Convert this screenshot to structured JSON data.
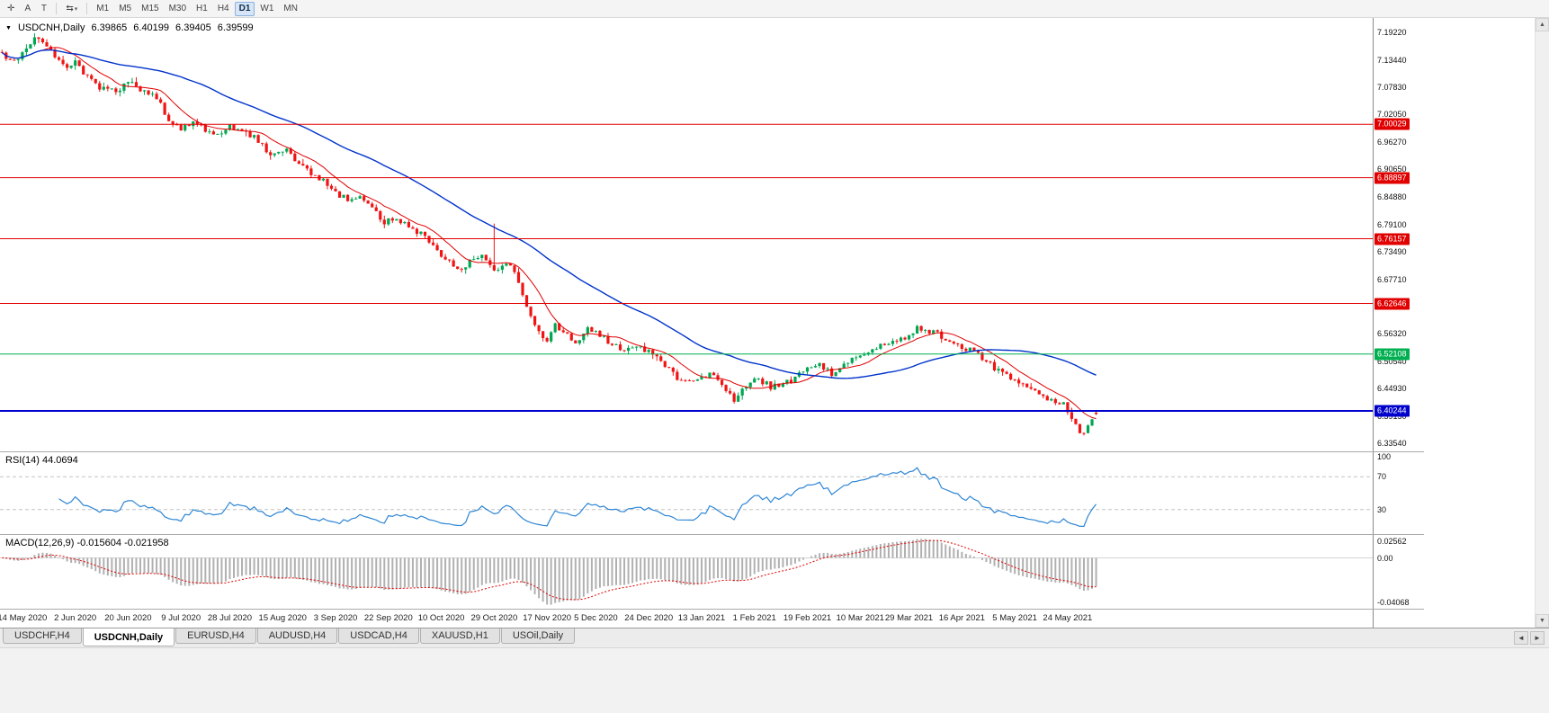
{
  "toolbar": {
    "tools": [
      {
        "name": "crosshair-tool-button",
        "glyph": "✛"
      },
      {
        "name": "text-label-tool-button",
        "glyph": "A"
      },
      {
        "name": "text-tool-button",
        "glyph": "T"
      }
    ],
    "cycle_tool": {
      "name": "cycle-lines-tool-button",
      "glyph": "⇆",
      "caret": "▾"
    },
    "timeframes": [
      {
        "label": "M1"
      },
      {
        "label": "M5"
      },
      {
        "label": "M15"
      },
      {
        "label": "M30"
      },
      {
        "label": "H1"
      },
      {
        "label": "H4"
      },
      {
        "label": "D1",
        "active": true
      },
      {
        "label": "W1"
      },
      {
        "label": "MN"
      }
    ]
  },
  "chart": {
    "expander": "▼",
    "symbol_period": "USDCNH,Daily",
    "open": "6.39865",
    "high": "6.40199",
    "low": "6.39405",
    "close": "6.39599"
  },
  "panels": {
    "rsi_label": "RSI(14) 44.0694",
    "macd_label": "MACD(12,26,9) -0.015604 -0.021958"
  },
  "scrollbar": {
    "up": "▲",
    "down": "▼"
  },
  "tab_nav": {
    "left": "◄",
    "right": "►"
  },
  "tabs": [
    {
      "label": "USDCHF,H4"
    },
    {
      "label": "USDCNH,Daily",
      "active": true
    },
    {
      "label": "EURUSD,H4"
    },
    {
      "label": "AUDUSD,H4"
    },
    {
      "label": "USDCAD,H4"
    },
    {
      "label": "XAUUSD,H1"
    },
    {
      "label": "USOil,Daily"
    }
  ],
  "chart_data": {
    "type": "candlestick",
    "symbol": "USDCNH",
    "period": "Daily",
    "ohlc_current": {
      "open": 6.39865,
      "high": 6.40199,
      "low": 6.39405,
      "close": 6.39599
    },
    "price_min": 6.318,
    "price_max": 7.222,
    "candle_count": 270,
    "candles_width_fraction": 0.8,
    "noise": 0.013,
    "up_color": "#00a651",
    "down_color": "#f01414",
    "anchors": [
      [
        0,
        7.15
      ],
      [
        3,
        7.128
      ],
      [
        6,
        7.16
      ],
      [
        9,
        7.183
      ],
      [
        12,
        7.15
      ],
      [
        15,
        7.12
      ],
      [
        18,
        7.133
      ],
      [
        21,
        7.098
      ],
      [
        24,
        7.076
      ],
      [
        28,
        7.068
      ],
      [
        31,
        7.088
      ],
      [
        34,
        7.072
      ],
      [
        38,
        7.056
      ],
      [
        41,
        7.01
      ],
      [
        44,
        6.992
      ],
      [
        47,
        7.002
      ],
      [
        50,
        6.988
      ],
      [
        53,
        6.978
      ],
      [
        56,
        6.995
      ],
      [
        59,
        6.988
      ],
      [
        62,
        6.972
      ],
      [
        66,
        6.94
      ],
      [
        70,
        6.948
      ],
      [
        73,
        6.918
      ],
      [
        76,
        6.898
      ],
      [
        79,
        6.882
      ],
      [
        82,
        6.858
      ],
      [
        85,
        6.842
      ],
      [
        88,
        6.846
      ],
      [
        91,
        6.822
      ],
      [
        94,
        6.798
      ],
      [
        97,
        6.806
      ],
      [
        100,
        6.782
      ],
      [
        103,
        6.772
      ],
      [
        106,
        6.748
      ],
      [
        109,
        6.716
      ],
      [
        112,
        6.698
      ],
      [
        115,
        6.712
      ],
      [
        118,
        6.722
      ],
      [
        121,
        6.695
      ],
      [
        124,
        6.712
      ],
      [
        126,
        6.69
      ],
      [
        128,
        6.64
      ],
      [
        130,
        6.598
      ],
      [
        132,
        6.568
      ],
      [
        134,
        6.552
      ],
      [
        136,
        6.58
      ],
      [
        138,
        6.562
      ],
      [
        141,
        6.548
      ],
      [
        144,
        6.572
      ],
      [
        147,
        6.562
      ],
      [
        150,
        6.538
      ],
      [
        153,
        6.528
      ],
      [
        156,
        6.536
      ],
      [
        159,
        6.528
      ],
      [
        162,
        6.506
      ],
      [
        165,
        6.478
      ],
      [
        168,
        6.462
      ],
      [
        171,
        6.468
      ],
      [
        174,
        6.482
      ],
      [
        177,
        6.455
      ],
      [
        180,
        6.428
      ],
      [
        183,
        6.458
      ],
      [
        186,
        6.47
      ],
      [
        189,
        6.452
      ],
      [
        192,
        6.458
      ],
      [
        195,
        6.472
      ],
      [
        198,
        6.492
      ],
      [
        201,
        6.502
      ],
      [
        204,
        6.478
      ],
      [
        207,
        6.498
      ],
      [
        210,
        6.512
      ],
      [
        213,
        6.528
      ],
      [
        216,
        6.542
      ],
      [
        219,
        6.548
      ],
      [
        222,
        6.558
      ],
      [
        225,
        6.576
      ],
      [
        228,
        6.568
      ],
      [
        231,
        6.558
      ],
      [
        234,
        6.548
      ],
      [
        237,
        6.532
      ],
      [
        240,
        6.52
      ],
      [
        243,
        6.498
      ],
      [
        246,
        6.478
      ],
      [
        249,
        6.468
      ],
      [
        252,
        6.456
      ],
      [
        255,
        6.432
      ],
      [
        258,
        6.428
      ],
      [
        261,
        6.415
      ],
      [
        263,
        6.388
      ],
      [
        265,
        6.36
      ],
      [
        266,
        6.356
      ],
      [
        267,
        6.378
      ],
      [
        268,
        6.388
      ],
      [
        269,
        6.396
      ]
    ],
    "spikes": [
      {
        "i": 121,
        "high": 6.793
      }
    ],
    "moving_averages": [
      {
        "name": "ma-fast",
        "window": 10,
        "color": "#e00000",
        "stroke": 1
      },
      {
        "name": "ma-slow",
        "window": 45,
        "color": "#0033cc",
        "stroke": 1.4
      }
    ],
    "hlines": [
      {
        "value": 7.00029,
        "color": "#e00000",
        "width": 1
      },
      {
        "value": 6.88897,
        "color": "#e00000",
        "width": 1
      },
      {
        "value": 6.76157,
        "color": "#e00000",
        "width": 1
      },
      {
        "value": 6.62646,
        "color": "#e00000",
        "width": 1
      },
      {
        "value": 6.52108,
        "color": "#00b050",
        "width": 1
      },
      {
        "value": 6.40244,
        "color": "#0000cc",
        "width": 2
      }
    ],
    "y_axis_labels": [
      7.1922,
      7.1344,
      7.0783,
      7.0205,
      6.9627,
      6.9065,
      6.8488,
      6.791,
      6.7349,
      6.6771,
      6.621,
      6.5632,
      6.5054,
      6.4493,
      6.3915,
      6.3354
    ],
    "x_labels": [
      "14 May 2020",
      "2 Jun 2020",
      "20 Jun 2020",
      "9 Jul 2020",
      "28 Jul 2020",
      "15 Aug 2020",
      "3 Sep 2020",
      "22 Sep 2020",
      "10 Oct 2020",
      "29 Oct 2020",
      "17 Nov 2020",
      "5 Dec 2020",
      "24 Dec 2020",
      "13 Jan 2021",
      "1 Feb 2021",
      "19 Feb 2021",
      "10 Mar 2021",
      "29 Mar 2021",
      "16 Apr 2021",
      "5 May 2021",
      "24 May 2021"
    ],
    "x_label_first_index": 5,
    "x_label_step": 12.85,
    "indicators": {
      "rsi": {
        "period": 14,
        "current": 44.0694,
        "levels": [
          70,
          30
        ],
        "axis_labels": [
          "100",
          "70",
          "30"
        ],
        "color": "#2e86d5"
      },
      "macd": {
        "fast": 12,
        "slow": 26,
        "signal": 9,
        "macd_current": -0.015604,
        "signal_current": -0.021958,
        "axis_labels": [
          "0.02562",
          "0.00",
          "-0.04068"
        ],
        "hist_color": "#b0b0b0",
        "signal_color": "#e00000"
      }
    }
  }
}
